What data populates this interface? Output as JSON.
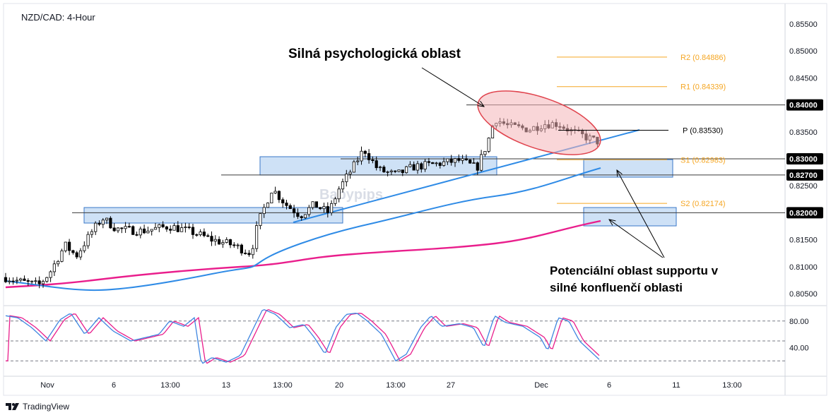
{
  "header": {
    "symbol_label": "NZD/CAD: 4-Hour"
  },
  "annotations": {
    "top": "Silná psychologická oblast",
    "bottom_line1": "Potenciální oblast supportu v",
    "bottom_line2": "silné konfluenčí oblasti"
  },
  "watermark": "Babypips",
  "footer": {
    "brand": "TradingView",
    "logo_icon": "tradingview-logo-icon"
  },
  "colors": {
    "up": "#ffffff",
    "down": "#000000",
    "ema_fast": "#2f8be6",
    "ema_slow": "#e91e8c",
    "pivot_orange": "#f5a623",
    "pivot_black": "#000000",
    "box_fill": "#c6dcf5",
    "box_stroke": "#3a78c8",
    "ellipse_fill": "#f4b4b8",
    "ellipse_stroke": "#e0444e",
    "stoch_k": "#3f86e0",
    "stoch_d": "#e91e8c"
  },
  "chart_data": {
    "type": "candlestick",
    "title": "NZD/CAD: 4-Hour",
    "ylim": [
      0.8025,
      0.8575
    ],
    "y_ticks": [
      "0.85500",
      "0.85000",
      "0.84500",
      "0.84000",
      "0.83500",
      "0.83000",
      "0.82500",
      "0.82000",
      "0.81500",
      "0.81000",
      "0.80500"
    ],
    "x_ticks": [
      "Nov",
      "6",
      "13:00",
      "13",
      "13:00",
      "20",
      "13:00",
      "27",
      "Dec",
      "6",
      "11",
      "13:00"
    ],
    "levels": [
      {
        "label": "0.84000",
        "value": 0.84
      },
      {
        "label": "0.83000",
        "value": 0.83
      },
      {
        "label": "0.82700",
        "value": 0.827
      },
      {
        "label": "0.82000",
        "value": 0.82
      }
    ],
    "pivots": [
      {
        "label": "R2 (0.84886)",
        "value": 0.84886,
        "color": "orange"
      },
      {
        "label": "R1 (0.84339)",
        "value": 0.84339,
        "color": "orange"
      },
      {
        "label": "P (0.83530)",
        "value": 0.8353,
        "color": "black"
      },
      {
        "label": "S1 (0.82983)",
        "value": 0.82983,
        "color": "orange"
      },
      {
        "label": "S2 (0.82174)",
        "value": 0.82174,
        "color": "orange"
      }
    ],
    "stochastic": {
      "levels": [
        80,
        50,
        20
      ],
      "tick_labels": [
        "80.00",
        "40.00"
      ]
    }
  }
}
